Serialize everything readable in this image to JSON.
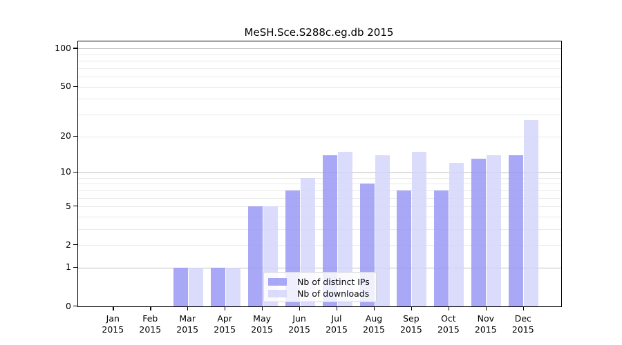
{
  "chart_data": {
    "type": "bar",
    "title": "MeSH.Sce.S288c.eg.db 2015",
    "categories": [
      "Jan",
      "Feb",
      "Mar",
      "Apr",
      "May",
      "Jun",
      "Jul",
      "Aug",
      "Sep",
      "Oct",
      "Nov",
      "Dec"
    ],
    "year_label": "2015",
    "series": [
      {
        "name": "Nb of distinct IPs",
        "color": "#9999f5",
        "values": [
          0,
          0,
          1,
          1,
          5,
          7,
          14,
          8,
          7,
          7,
          13,
          14
        ]
      },
      {
        "name": "Nb of downloads",
        "color": "#d5d5fa",
        "values": [
          0,
          0,
          1,
          1,
          5,
          9,
          15,
          14,
          15,
          12,
          14,
          27
        ]
      }
    ],
    "y_axis": {
      "scale": "log1p",
      "ticks": [
        0,
        1,
        2,
        5,
        10,
        20,
        50,
        100
      ],
      "max": 114
    },
    "grid": {
      "major": [
        1,
        10,
        100
      ],
      "minor": [
        2,
        3,
        4,
        5,
        6,
        7,
        8,
        9,
        20,
        30,
        40,
        50,
        60,
        70,
        80,
        90
      ],
      "major_color": "#bdbdbd",
      "minor_color": "#e9e9e9"
    },
    "legend": {
      "position": "inside-bottom-center",
      "entries": [
        "Nb of distinct IPs",
        "Nb of downloads"
      ]
    }
  }
}
